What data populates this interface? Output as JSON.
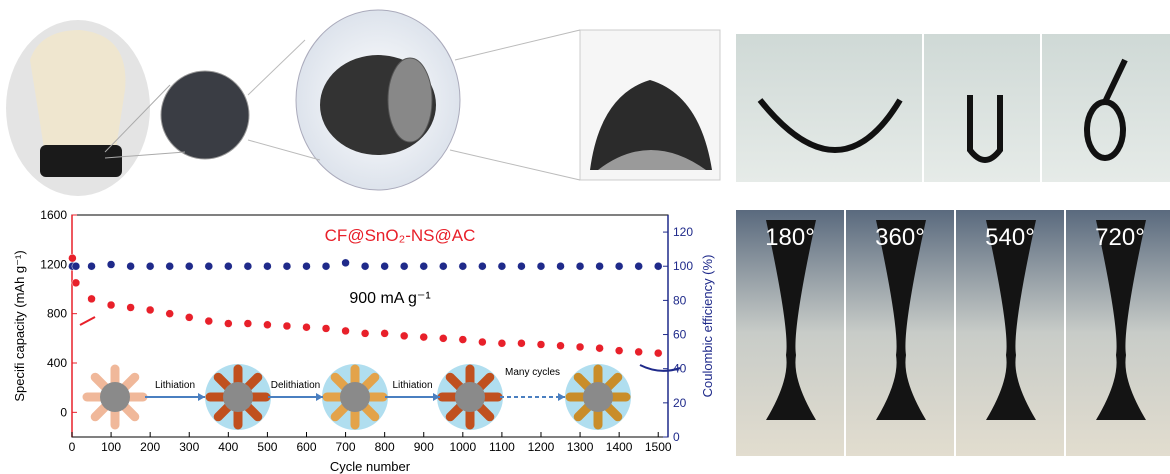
{
  "chart_data": {
    "type": "scatter",
    "annotations": [
      "CF@SnO₂-NS@AC",
      "900 mA g⁻¹"
    ],
    "y_label": "Specifi capacity (mAh g⁻¹)",
    "y2_label": "Coulombic efficiency (%)",
    "x_label": "Cycle number",
    "x": [
      1,
      10,
      50,
      100,
      150,
      200,
      250,
      300,
      350,
      400,
      450,
      500,
      550,
      600,
      650,
      700,
      750,
      800,
      850,
      900,
      950,
      1000,
      1050,
      1100,
      1150,
      1200,
      1250,
      1300,
      1350,
      1400,
      1450,
      1500
    ],
    "series": [
      {
        "color": "#e8202a",
        "values": [
          1250,
          1050,
          920,
          870,
          850,
          830,
          800,
          770,
          740,
          720,
          720,
          710,
          700,
          690,
          680,
          660,
          640,
          640,
          620,
          610,
          600,
          590,
          570,
          560,
          560,
          550,
          540,
          530,
          520,
          500,
          490,
          480
        ]
      },
      {
        "color": "#1f2a8a",
        "axis": "y2",
        "values": [
          100,
          100,
          100,
          101,
          100,
          100,
          100,
          100,
          100,
          100,
          100,
          100,
          100,
          100,
          100,
          102,
          100,
          100,
          100,
          100,
          100,
          100,
          100,
          100,
          100,
          100,
          100,
          100,
          100,
          100,
          100,
          100
        ]
      }
    ],
    "xlim": [
      0,
      1525
    ],
    "xticks": [
      0,
      100,
      200,
      300,
      400,
      500,
      600,
      700,
      800,
      900,
      1000,
      1100,
      1200,
      1300,
      1400,
      1500
    ],
    "ylim": [
      -200,
      1600
    ],
    "yticks": [
      0,
      400,
      800,
      1200,
      1600
    ],
    "y2lim": [
      0,
      130
    ],
    "y2ticks": [
      0,
      20,
      40,
      60,
      80,
      100,
      120
    ]
  },
  "schematic": {
    "steps": [
      "Lithiation",
      "Delithiation",
      "Lithiation",
      "Many cycles"
    ]
  },
  "photos": {
    "angles": [
      "180°",
      "360°",
      "540°",
      "720°"
    ]
  }
}
